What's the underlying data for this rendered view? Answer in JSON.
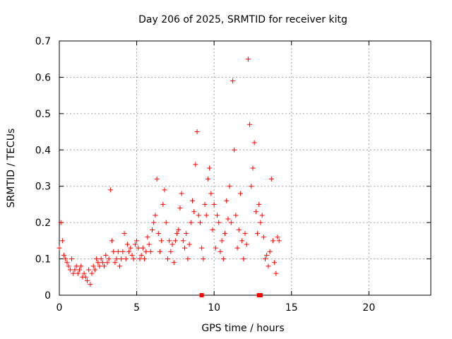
{
  "chart_data": {
    "type": "scatter",
    "title": "Day 206 of 2025, SRMTID for receiver kitg",
    "xlabel": "GPS time / hours",
    "ylabel": "SRMTID / TECUs",
    "xlim": [
      0,
      24
    ],
    "ylim": [
      0,
      0.7
    ],
    "xticks": [
      0,
      5,
      10,
      15,
      20
    ],
    "yticks": [
      0,
      0.1,
      0.2,
      0.3,
      0.4,
      0.5,
      0.6,
      0.7
    ],
    "xtick_labels": [
      "0",
      "5",
      "10",
      "15",
      "20"
    ],
    "ytick_labels": [
      "0",
      "0.1",
      "0.2",
      "0.3",
      "0.4",
      "0.5",
      "0.6",
      "0.7"
    ],
    "grid": true,
    "marker": "+",
    "series_color": "#ff0000",
    "x_axis_markers": [
      9.2,
      12.9,
      13.0
    ],
    "series": [
      {
        "name": "SRMTID kitg",
        "x": [
          0.0,
          0.1,
          0.2,
          0.3,
          0.4,
          0.5,
          0.6,
          0.7,
          0.8,
          0.9,
          1.0,
          1.1,
          1.2,
          1.3,
          1.4,
          1.5,
          1.6,
          1.7,
          1.8,
          1.9,
          2.0,
          2.1,
          2.2,
          2.3,
          2.4,
          2.5,
          2.6,
          2.7,
          2.8,
          2.9,
          3.0,
          3.1,
          3.2,
          3.3,
          3.4,
          3.5,
          3.6,
          3.7,
          3.8,
          3.9,
          4.0,
          4.1,
          4.2,
          4.3,
          4.4,
          4.5,
          4.6,
          4.7,
          4.8,
          4.9,
          5.0,
          5.1,
          5.2,
          5.3,
          5.4,
          5.5,
          5.6,
          5.7,
          5.8,
          5.9,
          6.0,
          6.1,
          6.2,
          6.3,
          6.4,
          6.5,
          6.6,
          6.7,
          6.8,
          6.9,
          7.0,
          7.1,
          7.2,
          7.3,
          7.4,
          7.5,
          7.6,
          7.7,
          7.8,
          7.9,
          8.0,
          8.1,
          8.2,
          8.3,
          8.4,
          8.5,
          8.6,
          8.7,
          8.8,
          8.9,
          9.0,
          9.1,
          9.2,
          9.3,
          9.4,
          9.5,
          9.6,
          9.7,
          9.8,
          9.9,
          10.0,
          10.1,
          10.2,
          10.3,
          10.4,
          10.5,
          10.6,
          10.7,
          10.8,
          10.9,
          11.0,
          11.1,
          11.2,
          11.3,
          11.4,
          11.5,
          11.6,
          11.7,
          11.8,
          11.9,
          12.0,
          12.1,
          12.2,
          12.3,
          12.4,
          12.5,
          12.6,
          12.7,
          12.8,
          12.9,
          13.0,
          13.1,
          13.2,
          13.3,
          13.4,
          13.5,
          13.6,
          13.7,
          13.8,
          13.9,
          14.0,
          14.1,
          14.2
        ],
        "values": [
          0.13,
          0.2,
          0.15,
          0.11,
          0.1,
          0.09,
          0.08,
          0.07,
          0.1,
          0.06,
          0.07,
          0.08,
          0.06,
          0.07,
          0.08,
          0.05,
          0.06,
          0.05,
          0.04,
          0.07,
          0.03,
          0.06,
          0.08,
          0.07,
          0.1,
          0.09,
          0.08,
          0.1,
          0.09,
          0.08,
          0.11,
          0.09,
          0.1,
          0.29,
          0.15,
          0.12,
          0.09,
          0.1,
          0.12,
          0.08,
          0.1,
          0.12,
          0.17,
          0.1,
          0.14,
          0.12,
          0.13,
          0.11,
          0.1,
          0.14,
          0.15,
          0.13,
          0.1,
          0.11,
          0.13,
          0.1,
          0.12,
          0.16,
          0.14,
          0.12,
          0.18,
          0.2,
          0.22,
          0.32,
          0.17,
          0.12,
          0.15,
          0.25,
          0.29,
          0.2,
          0.1,
          0.15,
          0.12,
          0.14,
          0.09,
          0.15,
          0.17,
          0.18,
          0.24,
          0.28,
          0.15,
          0.13,
          0.17,
          0.1,
          0.14,
          0.2,
          0.26,
          0.23,
          0.36,
          0.45,
          0.22,
          0.2,
          0.13,
          0.1,
          0.25,
          0.22,
          0.32,
          0.35,
          0.28,
          0.18,
          0.25,
          0.13,
          0.22,
          0.2,
          0.12,
          0.15,
          0.1,
          0.17,
          0.26,
          0.21,
          0.3,
          0.2,
          0.59,
          0.4,
          0.22,
          0.13,
          0.18,
          0.28,
          0.15,
          0.1,
          0.17,
          0.14,
          0.65,
          0.47,
          0.3,
          0.35,
          0.42,
          0.23,
          0.17,
          0.25,
          0.2,
          0.22,
          0.16,
          0.1,
          0.11,
          0.08,
          0.12,
          0.32,
          0.15,
          0.09,
          0.06,
          0.16,
          0.15
        ]
      }
    ]
  }
}
